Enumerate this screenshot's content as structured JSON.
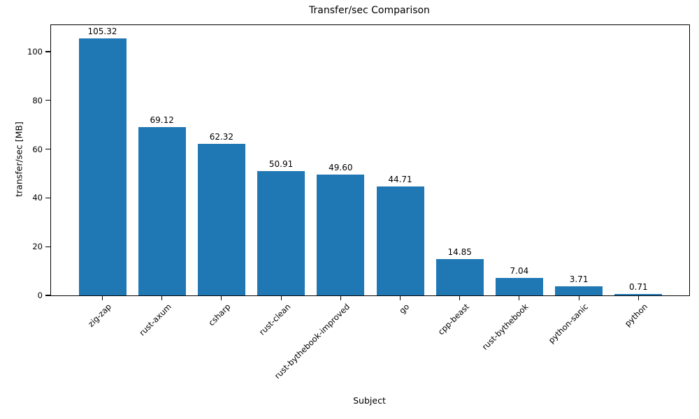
{
  "chart_data": {
    "type": "bar",
    "title": "Transfer/sec Comparison",
    "xlabel": "Subject",
    "ylabel": "transfer/sec [MB]",
    "categories": [
      "zig-zap",
      "rust-axum",
      "csharp",
      "rust-clean",
      "rust-bythebook-improved",
      "go",
      "cpp-beast",
      "rust-bythebook",
      "python-sanic",
      "python"
    ],
    "values": [
      105.32,
      69.12,
      62.32,
      50.91,
      49.6,
      44.71,
      14.85,
      7.04,
      3.71,
      0.71
    ],
    "value_labels": [
      "105.32",
      "69.12",
      "62.32",
      "50.91",
      "49.60",
      "44.71",
      "14.85",
      "7.04",
      "3.71",
      "0.71"
    ],
    "yticks": [
      0,
      20,
      40,
      60,
      80,
      100
    ],
    "ylim": [
      0,
      110.9
    ],
    "bar_color": "#1f77b4",
    "axis_color": "#000000",
    "background_color": "#ffffff",
    "grid": "off",
    "legend": "none",
    "x_tick_rotation_deg": 45
  }
}
